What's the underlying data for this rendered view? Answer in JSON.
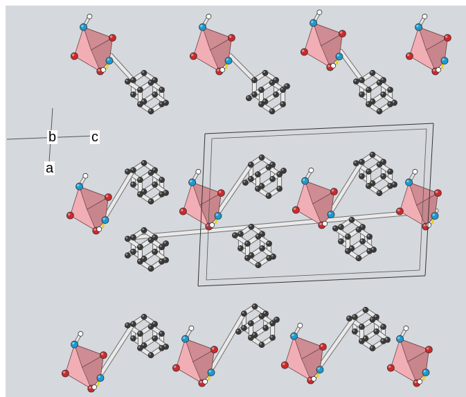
{
  "axes": {
    "a": "a",
    "b": "b",
    "c": "c"
  },
  "colors": {
    "background": "#d5d8dc",
    "polyhedron_light": "#f2aeb5",
    "polyhedron_mid": "#d08c93",
    "polyhedron_dark": "#9c6569",
    "oxygen": "#d0282a",
    "nitrogen": "#1b9ad2",
    "carbon": "#3a3a3a",
    "hydrogen": "#ffffff",
    "bond": "#e9e9e9",
    "hbond": "#e6d21c"
  }
}
